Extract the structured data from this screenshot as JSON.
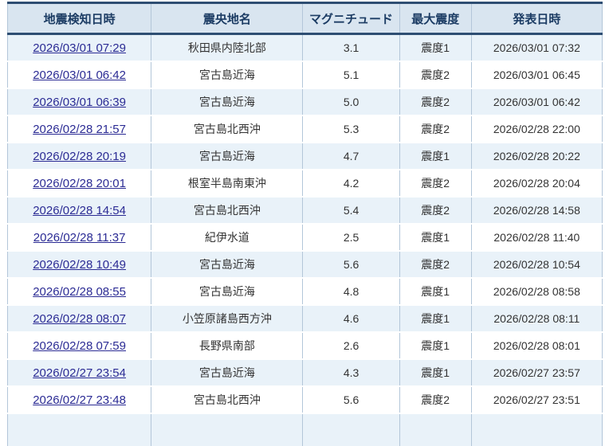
{
  "page": {
    "background": "#ffffff"
  },
  "table": {
    "columns": [
      {
        "key": "detected",
        "label": "地震検知日時"
      },
      {
        "key": "epicenter",
        "label": "震央地名"
      },
      {
        "key": "magnitude",
        "label": "マグニチュード"
      },
      {
        "key": "intensity",
        "label": "最大震度"
      },
      {
        "key": "announced",
        "label": "発表日時"
      }
    ],
    "rows": [
      {
        "detected": "2026/03/01 07:29",
        "epicenter": "秋田県内陸北部",
        "magnitude": "3.1",
        "intensity": "震度1",
        "announced": "2026/03/01 07:32"
      },
      {
        "detected": "2026/03/01 06:42",
        "epicenter": "宮古島近海",
        "magnitude": "5.1",
        "intensity": "震度2",
        "announced": "2026/03/01 06:45"
      },
      {
        "detected": "2026/03/01 06:39",
        "epicenter": "宮古島近海",
        "magnitude": "5.0",
        "intensity": "震度2",
        "announced": "2026/03/01 06:42"
      },
      {
        "detected": "2026/02/28 21:57",
        "epicenter": "宮古島北西沖",
        "magnitude": "5.3",
        "intensity": "震度2",
        "announced": "2026/02/28 22:00"
      },
      {
        "detected": "2026/02/28 20:19",
        "epicenter": "宮古島近海",
        "magnitude": "4.7",
        "intensity": "震度1",
        "announced": "2026/02/28 20:22"
      },
      {
        "detected": "2026/02/28 20:01",
        "epicenter": "根室半島南東沖",
        "magnitude": "4.2",
        "intensity": "震度2",
        "announced": "2026/02/28 20:04"
      },
      {
        "detected": "2026/02/28 14:54",
        "epicenter": "宮古島北西沖",
        "magnitude": "5.4",
        "intensity": "震度2",
        "announced": "2026/02/28 14:58"
      },
      {
        "detected": "2026/02/28 11:37",
        "epicenter": "紀伊水道",
        "magnitude": "2.5",
        "intensity": "震度1",
        "announced": "2026/02/28 11:40"
      },
      {
        "detected": "2026/02/28 10:49",
        "epicenter": "宮古島近海",
        "magnitude": "5.6",
        "intensity": "震度2",
        "announced": "2026/02/28 10:54"
      },
      {
        "detected": "2026/02/28 08:55",
        "epicenter": "宮古島近海",
        "magnitude": "4.8",
        "intensity": "震度1",
        "announced": "2026/02/28 08:58"
      },
      {
        "detected": "2026/02/28 08:07",
        "epicenter": "小笠原諸島西方沖",
        "magnitude": "4.6",
        "intensity": "震度1",
        "announced": "2026/02/28 08:11"
      },
      {
        "detected": "2026/02/28 07:59",
        "epicenter": "長野県南部",
        "magnitude": "2.6",
        "intensity": "震度1",
        "announced": "2026/02/28 08:01"
      },
      {
        "detected": "2026/02/27 23:54",
        "epicenter": "宮古島近海",
        "magnitude": "4.3",
        "intensity": "震度1",
        "announced": "2026/02/27 23:57"
      },
      {
        "detected": "2026/02/27 23:48",
        "epicenter": "宮古島北西沖",
        "magnitude": "5.6",
        "intensity": "震度2",
        "announced": "2026/02/27 23:51"
      }
    ],
    "colors": {
      "header_bg": "#d9e5f0",
      "header_text": "#1c3c64",
      "heavy_border": "#2e4e73",
      "row_alt_bg": "#e9f2f9",
      "row_bg": "#ffffff",
      "grid_line": "#b3c6d9",
      "link_color": "#2b2b94",
      "body_text": "#333333"
    }
  }
}
